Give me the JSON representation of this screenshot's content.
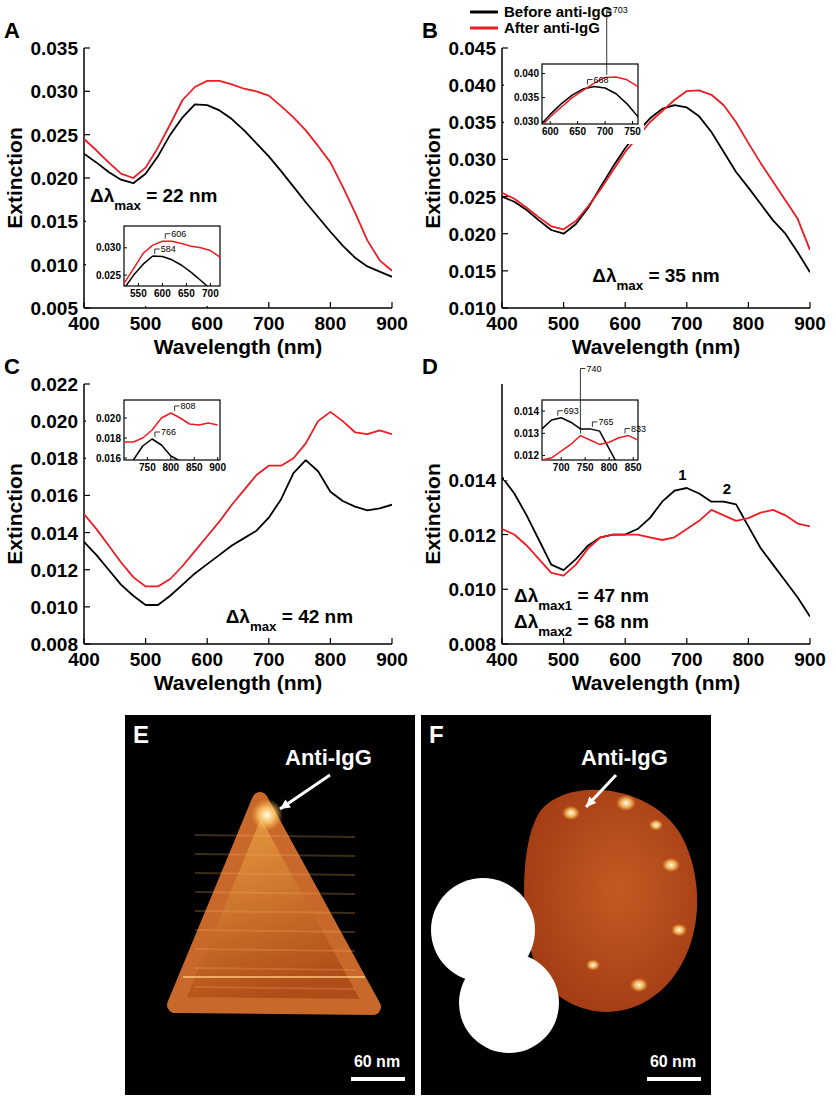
{
  "chart_data": [
    {
      "type": "line",
      "title": "A",
      "xlabel": "Wavelength (nm)",
      "ylabel": "Extinction",
      "annotations": [
        "Δλmax = 22 nm"
      ],
      "x": [
        400,
        420,
        440,
        460,
        480,
        500,
        520,
        540,
        560,
        580,
        600,
        620,
        640,
        660,
        680,
        700,
        720,
        740,
        760,
        780,
        800,
        820,
        840,
        860,
        880,
        900
      ],
      "xlim": [
        400,
        900
      ],
      "xticks": [
        400,
        500,
        600,
        700,
        800,
        900
      ],
      "ylim": [
        0.005,
        0.035
      ],
      "yticks": [
        0.005,
        {
          "value": 0.01,
          "label": "0.010"
        },
        0.015,
        {
          "value": 0.02,
          "label": "0.020"
        },
        0.025,
        {
          "value": 0.03,
          "label": "0.030"
        },
        0.035
      ],
      "series": [
        {
          "color": "#000000",
          "values": [
            0.0228,
            0.0218,
            0.0207,
            0.0198,
            0.0194,
            0.0205,
            0.0225,
            0.025,
            0.027,
            0.0285,
            0.0284,
            0.0278,
            0.0268,
            0.0255,
            0.024,
            0.0225,
            0.0208,
            0.019,
            0.0172,
            0.0155,
            0.0138,
            0.0122,
            0.0108,
            0.0098,
            0.0092,
            0.0086
          ],
          "peaks": [
            {
              "x": 584,
              "y": 0.0285
            }
          ]
        },
        {
          "color": "#ee1c24",
          "values": [
            0.0245,
            0.0232,
            0.0218,
            0.0205,
            0.02,
            0.0212,
            0.0235,
            0.0262,
            0.029,
            0.0305,
            0.0312,
            0.0312,
            0.0308,
            0.0303,
            0.03,
            0.0295,
            0.0283,
            0.027,
            0.0255,
            0.0237,
            0.0218,
            0.019,
            0.016,
            0.0128,
            0.0105,
            0.0093
          ],
          "peaks": [
            {
              "x": 606,
              "y": 0.0313
            }
          ]
        }
      ],
      "inset": {
        "xlim": [
          520,
          720
        ],
        "xticks": [
          550,
          600,
          650,
          700
        ],
        "ylim": [
          0.023,
          0.034
        ],
        "yticks": [
          0.025,
          {
            "value": 0.03,
            "label": "0.030"
          }
        ]
      }
    },
    {
      "type": "line",
      "title": "B",
      "xlabel": "Wavelength (nm)",
      "ylabel": "Extinction",
      "annotations": [
        "Δλmax = 35 nm"
      ],
      "legend": "top",
      "x": [
        400,
        420,
        440,
        460,
        480,
        500,
        520,
        540,
        560,
        580,
        600,
        620,
        640,
        660,
        680,
        700,
        720,
        740,
        760,
        780,
        800,
        820,
        840,
        860,
        880,
        900
      ],
      "xlim": [
        400,
        900
      ],
      "xticks": [
        400,
        500,
        600,
        700,
        800,
        900
      ],
      "ylim": [
        0.01,
        0.045
      ],
      "yticks": [
        {
          "value": 0.01,
          "label": "0.010"
        },
        0.015,
        {
          "value": 0.02,
          "label": "0.020"
        },
        0.025,
        {
          "value": 0.03,
          "label": "0.030"
        },
        0.035,
        {
          "value": 0.04,
          "label": "0.040"
        },
        0.045
      ],
      "series": [
        {
          "name": "Before anti-IgG",
          "color": "#000000",
          "values": [
            0.025,
            0.0243,
            0.0232,
            0.0218,
            0.0205,
            0.02,
            0.0213,
            0.0235,
            0.0263,
            0.029,
            0.0315,
            0.0337,
            0.0355,
            0.0368,
            0.0373,
            0.037,
            0.0358,
            0.0337,
            0.031,
            0.0283,
            0.0262,
            0.024,
            0.0218,
            0.02,
            0.0175,
            0.0148
          ],
          "peaks": [
            {
              "x": 668,
              "y": 0.0373
            }
          ]
        },
        {
          "name": "After anti-IgG",
          "color": "#ee1c24",
          "values": [
            0.0255,
            0.0247,
            0.0235,
            0.0222,
            0.021,
            0.0206,
            0.0217,
            0.0237,
            0.026,
            0.0285,
            0.031,
            0.033,
            0.035,
            0.0365,
            0.038,
            0.0392,
            0.0393,
            0.0387,
            0.0373,
            0.035,
            0.0322,
            0.0295,
            0.027,
            0.0245,
            0.022,
            0.0178
          ],
          "peaks": [
            {
              "x": 703,
              "y": 0.0393
            }
          ]
        }
      ],
      "inset": {
        "xlim": [
          585,
          760
        ],
        "xticks": [
          600,
          650,
          700,
          750
        ],
        "ylim": [
          0.0295,
          0.042
        ],
        "yticks": [
          {
            "value": 0.03,
            "label": "0.030"
          },
          0.035,
          {
            "value": 0.04,
            "label": "0.040"
          }
        ]
      }
    },
    {
      "type": "line",
      "title": "C",
      "xlabel": "Wavelength (nm)",
      "ylabel": "Extinction",
      "annotations": [
        "Δλmax = 42 nm"
      ],
      "x": [
        400,
        420,
        440,
        460,
        480,
        500,
        520,
        540,
        560,
        580,
        600,
        620,
        640,
        660,
        680,
        700,
        720,
        740,
        760,
        780,
        800,
        820,
        840,
        860,
        880,
        900
      ],
      "xlim": [
        400,
        900
      ],
      "xticks": [
        400,
        500,
        600,
        700,
        800,
        900
      ],
      "ylim": [
        0.008,
        0.022
      ],
      "yticks": [
        0.008,
        {
          "value": 0.01,
          "label": "0.010"
        },
        0.012,
        0.014,
        0.016,
        0.018,
        {
          "value": 0.02,
          "label": "0.020"
        },
        0.022
      ],
      "series": [
        {
          "color": "#000000",
          "values": [
            0.0135,
            0.0128,
            0.012,
            0.0112,
            0.0106,
            0.0101,
            0.0101,
            0.0106,
            0.0112,
            0.0118,
            0.0123,
            0.0128,
            0.0133,
            0.0137,
            0.0141,
            0.0148,
            0.0158,
            0.0172,
            0.0179,
            0.0173,
            0.0162,
            0.0157,
            0.0154,
            0.0152,
            0.0153,
            0.0155
          ],
          "peaks": [
            {
              "x": 766,
              "y": 0.0179
            }
          ]
        },
        {
          "color": "#ee1c24",
          "values": [
            0.015,
            0.0142,
            0.0133,
            0.0124,
            0.0116,
            0.0111,
            0.0111,
            0.0115,
            0.0122,
            0.013,
            0.0138,
            0.0146,
            0.0155,
            0.0163,
            0.0171,
            0.0176,
            0.0176,
            0.018,
            0.0188,
            0.02,
            0.0205,
            0.02,
            0.0194,
            0.0193,
            0.0195,
            0.0193
          ],
          "peaks": [
            {
              "x": 808,
              "y": 0.0205
            }
          ]
        }
      ],
      "inset": {
        "xlim": [
          700,
          905
        ],
        "xticks": [
          750,
          800,
          850,
          900
        ],
        "ylim": [
          0.0158,
          0.0218
        ],
        "yticks": [
          0.016,
          0.018,
          {
            "value": 0.02,
            "label": "0.020"
          }
        ]
      }
    },
    {
      "type": "line",
      "title": "D",
      "xlabel": "Wavelength (nm)",
      "ylabel": "Extinction",
      "annotations": [
        "Δλmax1 = 47 nm",
        "Δλmax2 = 68 nm"
      ],
      "x": [
        400,
        420,
        440,
        460,
        480,
        500,
        520,
        540,
        560,
        580,
        600,
        620,
        640,
        660,
        680,
        700,
        720,
        740,
        760,
        780,
        800,
        820,
        840,
        860,
        880,
        900
      ],
      "xlim": [
        400,
        900
      ],
      "xticks": [
        400,
        500,
        600,
        700,
        800,
        900
      ],
      "ylim": [
        0.008,
        0.0175
      ],
      "yticks": [
        0.008,
        {
          "value": 0.01,
          "label": "0.010"
        },
        0.012,
        0.014
      ],
      "series": [
        {
          "color": "#000000",
          "values": [
            0.0141,
            0.0135,
            0.0127,
            0.0118,
            0.0109,
            0.0107,
            0.0111,
            0.0116,
            0.0119,
            0.012,
            0.012,
            0.0122,
            0.0126,
            0.0132,
            0.0136,
            0.0137,
            0.0135,
            0.0132,
            0.0132,
            0.0131,
            0.0123,
            0.0115,
            0.0109,
            0.0103,
            0.0097,
            0.009
          ],
          "point_labels": [
            {
              "x": 693,
              "y": 0.0137,
              "label": "1"
            },
            {
              "x": 765,
              "y": 0.0132,
              "label": "2"
            }
          ],
          "peaks": [
            {
              "x": 693,
              "y": 0.0137
            },
            {
              "x": 765,
              "y": 0.0132
            }
          ]
        },
        {
          "color": "#ee1c24",
          "values": [
            0.0122,
            0.012,
            0.0116,
            0.0111,
            0.0106,
            0.0105,
            0.0109,
            0.0115,
            0.0119,
            0.012,
            0.012,
            0.012,
            0.0119,
            0.0118,
            0.0119,
            0.0122,
            0.0125,
            0.0129,
            0.0127,
            0.0125,
            0.0126,
            0.0128,
            0.0129,
            0.0127,
            0.0124,
            0.0123
          ],
          "peaks": [
            {
              "x": 740,
              "y": 0.0129
            },
            {
              "x": 833,
              "y": 0.0129
            }
          ]
        }
      ],
      "inset": {
        "xlim": [
          660,
          860
        ],
        "xticks": [
          700,
          750,
          800,
          850
        ],
        "ylim": [
          0.0118,
          0.0145
        ],
        "yticks": [
          0.012,
          0.013,
          0.014
        ]
      }
    }
  ],
  "images": [
    {
      "label": "E",
      "annotation": "Anti-IgG",
      "scale_bar": "60 nm"
    },
    {
      "label": "F",
      "annotation": "Anti-IgG",
      "scale_bar": "60 nm"
    }
  ]
}
